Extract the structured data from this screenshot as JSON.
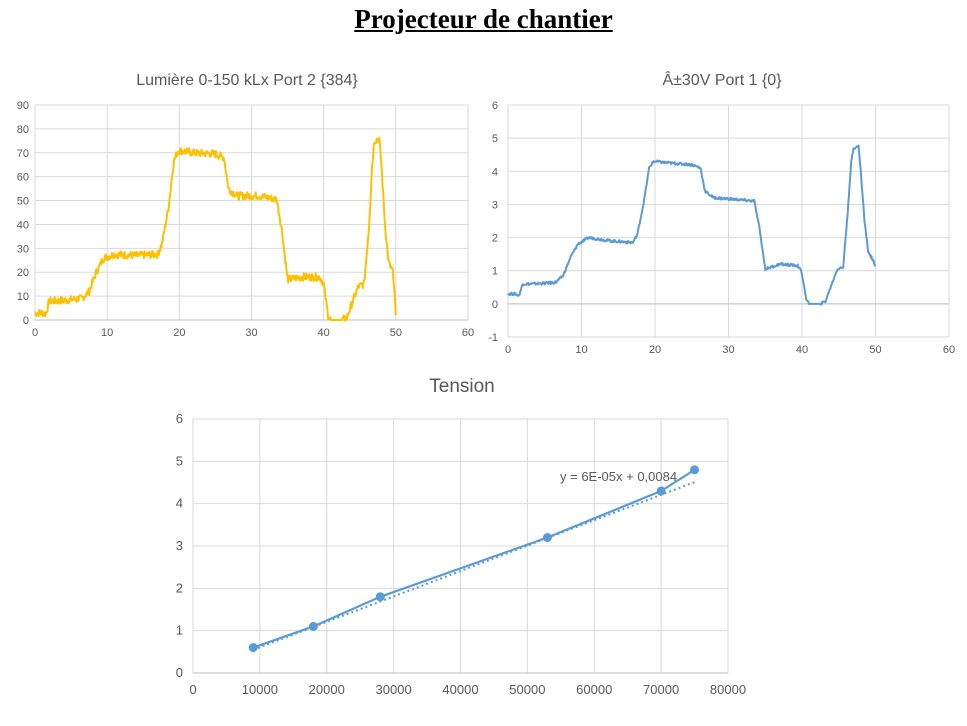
{
  "page": {
    "title": "Projecteur de chantier"
  },
  "colors": {
    "series_light": "#FFC000",
    "series_volt": "#5B9BD5",
    "grid": "#D9D9D9",
    "text": "#595959"
  },
  "chart_data": [
    {
      "type": "line",
      "title": "Lumière 0-150 kLx Port 2 {384}",
      "xlim": [
        0,
        60
      ],
      "ylim": [
        0,
        90
      ],
      "xticks": [
        0,
        10,
        20,
        30,
        40,
        50,
        60
      ],
      "yticks": [
        0,
        10,
        20,
        30,
        40,
        50,
        60,
        70,
        80,
        90
      ],
      "grid": true,
      "series": [
        {
          "color": "#FFC000",
          "x": [
            0,
            1,
            1.5,
            2,
            3,
            5,
            6.5,
            7.5,
            8.5,
            9.5,
            11,
            14,
            17,
            17.6,
            18.5,
            19.2,
            19.8,
            22,
            25,
            26.2,
            26.8,
            28,
            31,
            33.5,
            34.2,
            35,
            37,
            39.5,
            40,
            40.6,
            41,
            42.5,
            43.2,
            43.8,
            44.8,
            45.6,
            46.3,
            46.7,
            47,
            47.7,
            48,
            48.5,
            49,
            49.3,
            49.6,
            50
          ],
          "y": [
            3,
            3,
            2.5,
            8,
            8,
            8.5,
            9,
            12,
            20,
            26,
            27.5,
            27,
            27.5,
            32,
            47,
            66,
            71,
            70,
            69.5,
            68,
            55,
            52,
            52,
            50.5,
            38,
            17,
            18,
            18,
            15,
            2,
            0,
            0,
            1,
            6,
            14,
            15,
            40,
            64,
            75,
            76,
            65,
            40,
            24,
            22,
            20,
            2
          ],
          "noise": 1.6
        }
      ]
    },
    {
      "type": "line",
      "title": "Â±30V Port 1 {0}",
      "xlim": [
        0,
        60
      ],
      "ylim": [
        -1,
        6
      ],
      "xticks": [
        0,
        10,
        20,
        30,
        40,
        50,
        60
      ],
      "yticks": [
        -1,
        0,
        1,
        2,
        3,
        4,
        5,
        6
      ],
      "grid": true,
      "series": [
        {
          "color": "#5B9BD5",
          "x": [
            0,
            1,
            1.5,
            2,
            3,
            5,
            6.5,
            7.5,
            8.5,
            9.5,
            11,
            14,
            17,
            17.6,
            18.5,
            19.2,
            19.8,
            22,
            25,
            26.2,
            26.8,
            28,
            31,
            33.5,
            34.2,
            35,
            37,
            39.5,
            40,
            40.6,
            41,
            42.5,
            43.2,
            43.8,
            44.8,
            45.6,
            46.3,
            46.7,
            47,
            47.7,
            48,
            48.5,
            49,
            49.3,
            49.6,
            50
          ],
          "y": [
            0.3,
            0.3,
            0.25,
            0.6,
            0.6,
            0.62,
            0.65,
            0.85,
            1.4,
            1.8,
            2.0,
            1.9,
            1.85,
            2.1,
            3.1,
            4.1,
            4.3,
            4.25,
            4.2,
            4.1,
            3.4,
            3.2,
            3.15,
            3.1,
            2.3,
            1.05,
            1.2,
            1.15,
            0.9,
            0.1,
            0,
            0,
            0.08,
            0.45,
            1.05,
            1.1,
            3.0,
            4.3,
            4.7,
            4.75,
            4.0,
            2.5,
            1.6,
            1.45,
            1.35,
            1.15
          ],
          "noise": 0.04
        }
      ]
    },
    {
      "type": "scatter",
      "title": "Tension",
      "xlim": [
        0,
        80000
      ],
      "ylim": [
        0,
        6
      ],
      "xticks": [
        0,
        10000,
        20000,
        30000,
        40000,
        50000,
        60000,
        70000,
        80000
      ],
      "yticks": [
        0,
        1,
        2,
        3,
        4,
        5,
        6
      ],
      "grid": true,
      "series": [
        {
          "color": "#5B9BD5",
          "x": [
            9000,
            18000,
            28000,
            53000,
            70000,
            75000
          ],
          "y": [
            0.6,
            1.1,
            1.8,
            3.2,
            4.3,
            4.8
          ]
        }
      ],
      "trendline": {
        "slope": 6e-05,
        "intercept": 0.0084,
        "label": "y = 6E-05x + 0,0084"
      }
    }
  ]
}
